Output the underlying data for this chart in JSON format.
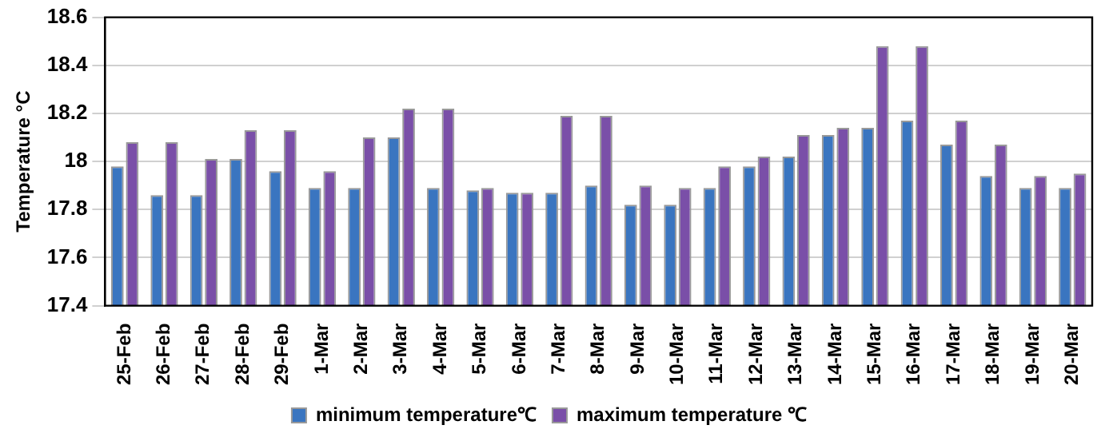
{
  "chart_data": {
    "type": "bar",
    "ylabel": "Temperature °C",
    "categories": [
      "25-Feb",
      "26-Feb",
      "27-Feb",
      "28-Feb",
      "29-Feb",
      "1-Mar",
      "2-Mar",
      "3-Mar",
      "4-Mar",
      "5-Mar",
      "6-Mar",
      "7-Mar",
      "8-Mar",
      "9-Mar",
      "10-Mar",
      "11-Mar",
      "12-Mar",
      "13-Mar",
      "14-Mar",
      "15-Mar",
      "16-Mar",
      "17-Mar",
      "18-Mar",
      "19-Mar",
      "20-Mar"
    ],
    "series": [
      {
        "name": "minimum temperature℃",
        "color": "#3a75c0",
        "values": [
          17.98,
          17.86,
          17.86,
          18.01,
          17.96,
          17.89,
          17.89,
          18.1,
          17.89,
          17.88,
          17.87,
          17.87,
          17.9,
          17.82,
          17.82,
          17.89,
          17.98,
          18.02,
          18.11,
          18.14,
          18.17,
          18.07,
          17.94,
          17.89,
          17.89
        ]
      },
      {
        "name": "maximum temperature ℃",
        "color": "#7a4fa8",
        "values": [
          18.08,
          18.08,
          18.01,
          18.13,
          18.13,
          17.96,
          18.1,
          18.22,
          18.22,
          17.89,
          17.87,
          18.19,
          18.19,
          17.9,
          17.89,
          17.98,
          18.02,
          18.11,
          18.14,
          18.48,
          18.48,
          18.17,
          18.07,
          17.94,
          17.95
        ]
      }
    ],
    "ylim": [
      17.4,
      18.6
    ],
    "yticks": [
      17.4,
      17.6,
      17.8,
      18,
      18.2,
      18.4,
      18.6
    ],
    "grid": "y",
    "legend": "bottom"
  }
}
